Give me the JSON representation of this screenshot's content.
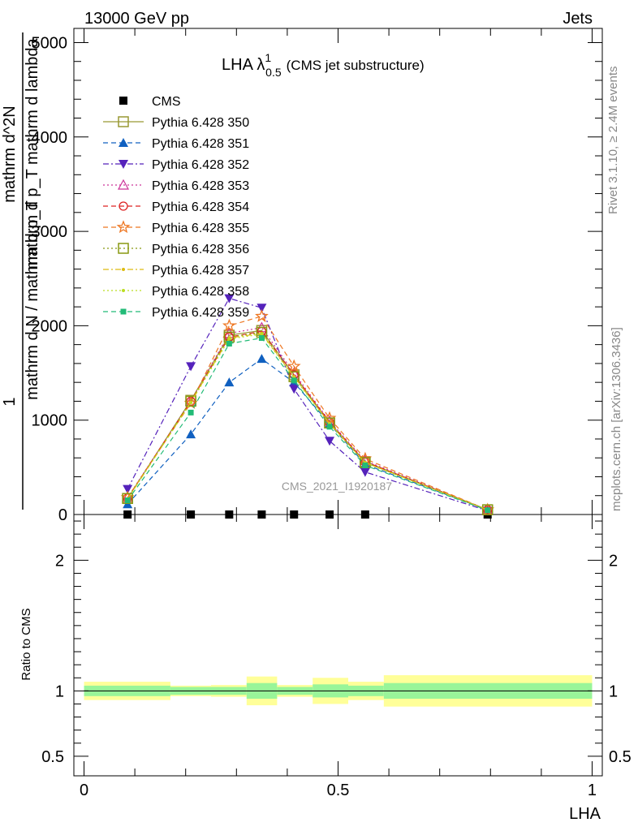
{
  "header": {
    "left": "13000 GeV pp",
    "right": "Jets",
    "rivet": "Rivet 3.1.10, ≥ 2.4M events",
    "source": "mcplots.cern.ch [arXiv:1306.3436]",
    "watermark": "CMS_2021_I1920187"
  },
  "title": {
    "main": "LHA λ",
    "sup": "1",
    "sub": "0.5",
    "extra": "(CMS jet substructure)"
  },
  "ylabel_top": {
    "numerator": "1",
    "denominator": "mathrm d N / mathrm d p_T",
    "frac_num": "mathrm d^2N",
    "frac_den": "mathrm d p_T mathrm d lambda"
  },
  "ratio_ylabel": "Ratio to CMS",
  "xlabel": "LHA",
  "colors": {
    "band_inner": "#99f599",
    "band_outer": "#ffff99"
  },
  "chart_data": [
    {
      "type": "line",
      "panel": "main",
      "xlim": [
        -0.02,
        1.02
      ],
      "ylim": [
        0,
        5150
      ],
      "yticks": [
        0,
        1000,
        2000,
        3000,
        4000,
        5000
      ],
      "ytick_labels": [
        "0",
        "1000",
        "2000",
        "3000",
        "4000",
        "5000"
      ],
      "legend_position": "top-left",
      "x": [
        0.0857,
        0.2102,
        0.2857,
        0.3497,
        0.4133,
        0.4833,
        0.5533,
        0.7943
      ],
      "series": [
        {
          "name": "CMS",
          "color": "#000000",
          "marker": "square-filled",
          "line": "none",
          "values": [
            0,
            0,
            0,
            0,
            0,
            0,
            0,
            0
          ]
        },
        {
          "name": "Pythia 6.428 350",
          "color": "#999933",
          "marker": "square-open",
          "line": "solid",
          "values": [
            170,
            1210,
            1900,
            1950,
            1480,
            970,
            560,
            50
          ]
        },
        {
          "name": "Pythia 6.428 351",
          "color": "#1060c0",
          "marker": "triangle-up",
          "line": "dashed",
          "values": [
            110,
            850,
            1400,
            1650,
            1400,
            960,
            530,
            50
          ]
        },
        {
          "name": "Pythia 6.428 352",
          "color": "#5522bb",
          "marker": "triangle-down",
          "line": "dashdot",
          "values": [
            270,
            1570,
            2290,
            2190,
            1330,
            780,
            450,
            40
          ]
        },
        {
          "name": "Pythia 6.428 353",
          "color": "#cc3399",
          "marker": "triangle-open",
          "line": "dotted",
          "values": [
            180,
            1200,
            1920,
            1980,
            1500,
            990,
            570,
            50
          ]
        },
        {
          "name": "Pythia 6.428 354",
          "color": "#dd2222",
          "marker": "circle-open",
          "line": "dashed",
          "values": [
            175,
            1200,
            1880,
            1940,
            1480,
            980,
            560,
            50
          ]
        },
        {
          "name": "Pythia 6.428 355",
          "color": "#ee7722",
          "marker": "star-open",
          "line": "dashed",
          "values": [
            180,
            1180,
            2000,
            2100,
            1570,
            1020,
            590,
            50
          ]
        },
        {
          "name": "Pythia 6.428 356",
          "color": "#889911",
          "marker": "square-open",
          "line": "dotted",
          "values": [
            170,
            1200,
            1880,
            1930,
            1460,
            970,
            550,
            50
          ]
        },
        {
          "name": "Pythia 6.428 357",
          "color": "#ddbb11",
          "marker": "dot",
          "line": "dashdot",
          "values": [
            165,
            1190,
            1870,
            1920,
            1460,
            965,
            550,
            50
          ]
        },
        {
          "name": "Pythia 6.428 358",
          "color": "#bbdd22",
          "marker": "dot",
          "line": "dotted",
          "values": [
            165,
            1185,
            1860,
            1910,
            1450,
            960,
            545,
            50
          ]
        },
        {
          "name": "Pythia 6.428 359",
          "color": "#22bb77",
          "marker": "square-small",
          "line": "dashed",
          "values": [
            150,
            1080,
            1810,
            1870,
            1420,
            930,
            520,
            45
          ]
        }
      ]
    },
    {
      "type": "area",
      "panel": "ratio",
      "xlim": [
        -0.02,
        1.02
      ],
      "ylim": [
        0.35,
        2.35
      ],
      "yticks": [
        0.5,
        1,
        2
      ],
      "ytick_labels": [
        "0.5",
        "1",
        "2"
      ],
      "xticks": [
        0,
        0.5,
        1
      ],
      "xtick_labels": [
        "0",
        "0.5",
        "1"
      ],
      "bins": [
        {
          "x0": 0.0,
          "x1": 0.17,
          "inner": [
            0.96,
            1.04
          ],
          "outer": [
            0.93,
            1.07
          ]
        },
        {
          "x0": 0.17,
          "x1": 0.25,
          "inner": [
            0.97,
            1.03
          ],
          "outer": [
            0.96,
            1.04
          ]
        },
        {
          "x0": 0.25,
          "x1": 0.32,
          "inner": [
            0.97,
            1.03
          ],
          "outer": [
            0.955,
            1.045
          ]
        },
        {
          "x0": 0.32,
          "x1": 0.38,
          "inner": [
            0.94,
            1.06
          ],
          "outer": [
            0.89,
            1.11
          ]
        },
        {
          "x0": 0.38,
          "x1": 0.45,
          "inner": [
            0.97,
            1.03
          ],
          "outer": [
            0.955,
            1.045
          ]
        },
        {
          "x0": 0.45,
          "x1": 0.52,
          "inner": [
            0.95,
            1.05
          ],
          "outer": [
            0.9,
            1.1
          ]
        },
        {
          "x0": 0.52,
          "x1": 0.59,
          "inner": [
            0.96,
            1.04
          ],
          "outer": [
            0.93,
            1.07
          ]
        },
        {
          "x0": 0.59,
          "x1": 1.0,
          "inner": [
            0.94,
            1.06
          ],
          "outer": [
            0.88,
            1.12
          ]
        }
      ],
      "reference": 1
    }
  ]
}
